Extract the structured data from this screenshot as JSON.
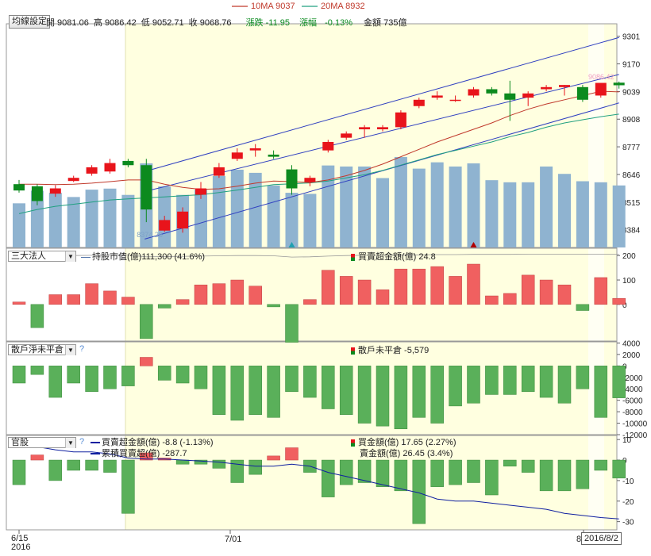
{
  "header": {
    "ma10_label": "10MA 9037",
    "ma20_label": "20MA 8932",
    "settings_button": "均線設定",
    "open": "開 9081.06",
    "high": "高 9086.42",
    "low": "低 9052.71",
    "close": "收 9068.76",
    "change": "漲跌 -11.95",
    "change_pct_label": "漲幅",
    "change_pct": "-0.13%",
    "amount": "金額 735億"
  },
  "colors": {
    "up": "#e8141b",
    "down": "#0c8a1e",
    "ma10": "#c0392b",
    "ma20": "#20a080",
    "volume": "#8fb3d0",
    "highlight": "#ffffe0",
    "pos_bar": "#f06060",
    "neg_bar": "#5ab05a",
    "line_blue": "#3040c0"
  },
  "panel2": {
    "dropdown": "三大法人",
    "legend_line": "持股市值(億)111,300 (41.6%)",
    "legend_bar": "買賣超金額(億) 24.8"
  },
  "panel3": {
    "dropdown": "散戶淨未平倉",
    "help": "?",
    "legend_bar": "散戶未平倉 -5,579"
  },
  "panel4": {
    "dropdown": "官股",
    "help": "?",
    "legend_line1": "買賣超金額(億) -8.8 (-1.13%)",
    "legend_line2": "累積買賣超(億) -287.7",
    "legend_buy": "買金額(億) 17.65 (2.27%)",
    "legend_sell": "賣金額(億) 26.45 (3.4%)"
  },
  "xaxis": {
    "label1_line1": "6/15",
    "label1_line2": "2016",
    "label2": "7/01",
    "label3_partial": "8",
    "current_date": "2016/8/2"
  },
  "annotations": {
    "low_price": "8374.26",
    "high_price": "9086.42"
  },
  "chart_data": [
    {
      "type": "candlestick",
      "yticks": [
        9301,
        9170,
        9039,
        8908,
        8777,
        8646,
        8515,
        8384
      ],
      "ylim": [
        8300,
        9360
      ],
      "ohlc": [
        [
          8600,
          8620,
          8560,
          8570
        ],
        [
          8590,
          8600,
          8500,
          8520
        ],
        [
          8555,
          8595,
          8540,
          8580
        ],
        [
          8615,
          8640,
          8610,
          8630
        ],
        [
          8650,
          8690,
          8640,
          8680
        ],
        [
          8660,
          8720,
          8650,
          8700
        ],
        [
          8710,
          8720,
          8680,
          8690
        ],
        [
          8690,
          8720,
          8420,
          8480
        ],
        [
          8380,
          8450,
          8374.26,
          8430
        ],
        [
          8390,
          8490,
          8370,
          8470
        ],
        [
          8550,
          8610,
          8530,
          8580
        ],
        [
          8640,
          8700,
          8630,
          8680
        ],
        [
          8720,
          8770,
          8710,
          8750
        ],
        [
          8760,
          8790,
          8730,
          8770
        ],
        [
          8740,
          8760,
          8720,
          8730
        ],
        [
          8670,
          8690,
          8550,
          8580
        ],
        [
          8610,
          8640,
          8590,
          8630
        ],
        [
          8760,
          8810,
          8750,
          8800
        ],
        [
          8820,
          8850,
          8810,
          8840
        ],
        [
          8860,
          8880,
          8820,
          8870
        ],
        [
          8860,
          8880,
          8850,
          8870
        ],
        [
          8870,
          8950,
          8860,
          8940
        ],
        [
          8970,
          9010,
          8960,
          9000
        ],
        [
          9010,
          9040,
          9000,
          9020
        ],
        [
          9000,
          9020,
          8990,
          9000
        ],
        [
          9020,
          9060,
          9010,
          9050
        ],
        [
          9050,
          9060,
          9020,
          9030
        ],
        [
          9030,
          9090,
          8900,
          9000
        ],
        [
          9010,
          9040,
          8970,
          9030
        ],
        [
          9050,
          9070,
          9040,
          9060
        ],
        [
          9060,
          9070,
          9020,
          9070
        ],
        [
          9060,
          9070,
          8990,
          9000
        ],
        [
          9020,
          9080,
          9010,
          9080
        ],
        [
          9081.06,
          9086.42,
          9052.71,
          9068.76
        ]
      ],
      "volume_rel": [
        0.42,
        0.54,
        0.52,
        0.48,
        0.55,
        0.56,
        0.5,
        0.8,
        0.58,
        0.5,
        0.55,
        0.68,
        0.74,
        0.71,
        0.59,
        0.52,
        0.51,
        0.78,
        0.77,
        0.77,
        0.66,
        0.86,
        0.75,
        0.81,
        0.77,
        0.8,
        0.64,
        0.62,
        0.62,
        0.77,
        0.7,
        0.63,
        0.62,
        0.59
      ],
      "ma10": [
        8600,
        8600,
        8598,
        8600,
        8605,
        8612,
        8620,
        8620,
        8600,
        8585,
        8575,
        8578,
        8590,
        8605,
        8615,
        8612,
        8608,
        8620,
        8640,
        8665,
        8695,
        8730,
        8765,
        8800,
        8830,
        8860,
        8890,
        8925,
        8955,
        8980,
        9000,
        9020,
        9040,
        9037
      ],
      "ma20": [
        8460,
        8480,
        8495,
        8505,
        8515,
        8525,
        8530,
        8535,
        8540,
        8545,
        8550,
        8560,
        8572,
        8585,
        8598,
        8602,
        8606,
        8615,
        8630,
        8645,
        8665,
        8690,
        8715,
        8740,
        8760,
        8780,
        8800,
        8825,
        8845,
        8870,
        8890,
        8905,
        8920,
        8932
      ],
      "markers": [
        {
          "index": 15,
          "color": "#20a0b0"
        },
        {
          "index": 25,
          "color": "#b00000"
        }
      ]
    },
    {
      "type": "bar",
      "yticks": [
        200,
        100,
        0
      ],
      "ylim": [
        -150,
        230
      ],
      "values": [
        10,
        -95,
        40,
        40,
        85,
        55,
        30,
        -140,
        -15,
        20,
        80,
        85,
        100,
        75,
        -10,
        -155,
        20,
        140,
        115,
        100,
        60,
        145,
        145,
        155,
        115,
        165,
        35,
        45,
        120,
        100,
        80,
        -25,
        110,
        24.8
      ],
      "holding_line": [
        200,
        196,
        198,
        200,
        201,
        202,
        202,
        195,
        196,
        197,
        198,
        199,
        200,
        200,
        199,
        194,
        195,
        198,
        200,
        201,
        201,
        202,
        203,
        204,
        204,
        205,
        205,
        205,
        206,
        206,
        206,
        206,
        206,
        206
      ]
    },
    {
      "type": "bar",
      "yticks": [
        4000,
        2000,
        0,
        -2000,
        -4000,
        -6000,
        -8000,
        -10000,
        -12000
      ],
      "ylim": [
        -12000,
        4200
      ],
      "values": [
        -3000,
        -1500,
        -5500,
        -3000,
        -4500,
        -4000,
        -3500,
        1500,
        -2500,
        -3000,
        -4000,
        -8500,
        -9500,
        -8500,
        -9000,
        -4500,
        -5500,
        -7500,
        -8500,
        -10000,
        -10500,
        -11000,
        -9000,
        -10000,
        -7000,
        -6500,
        -5000,
        -5000,
        -4500,
        -5500,
        -6500,
        -4000,
        -9000,
        -5579
      ]
    },
    {
      "type": "bar",
      "yticks": [
        10,
        0,
        -10,
        -20,
        -30
      ],
      "ylim": [
        -34,
        12
      ],
      "values": [
        -12,
        2.5,
        -10,
        -5,
        -5,
        -6,
        -26,
        3.5,
        1,
        -2,
        -2,
        -4,
        -11,
        -7,
        2,
        6,
        -6,
        -18,
        -12,
        -11,
        -13,
        -15,
        -31,
        -13,
        -12,
        -11,
        -17,
        -3,
        -6,
        -15,
        -15,
        -14,
        -5,
        -8.8
      ],
      "cumulative": [
        8,
        6.5,
        5,
        4,
        4,
        3,
        1,
        0.5,
        0.5,
        0,
        -0.5,
        -1,
        -2,
        -3,
        -3,
        -2,
        -3,
        -6,
        -8,
        -10,
        -12,
        -14,
        -16,
        -19,
        -20,
        -20,
        -21,
        -22,
        -23,
        -24,
        -26,
        -27,
        -28,
        -28.7
      ]
    }
  ]
}
